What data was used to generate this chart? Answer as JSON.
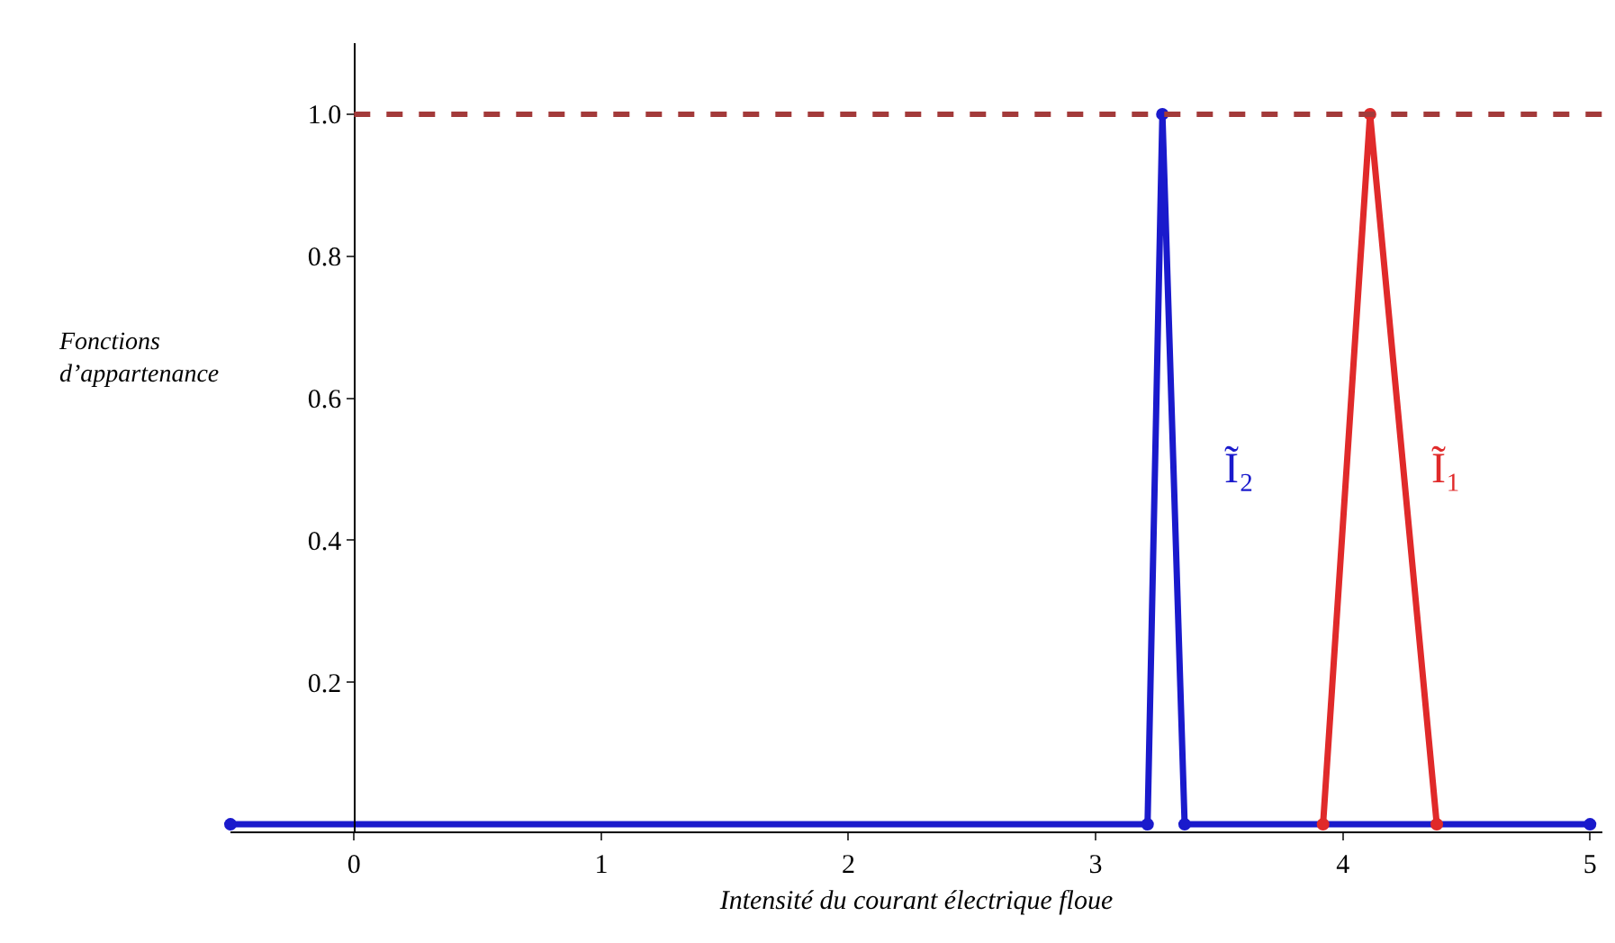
{
  "chart_data": {
    "type": "line",
    "xlabel": "Intensité du courant électrique floue",
    "ylabel": "Fonctions\nd’appartenance",
    "xlim": [
      -0.5,
      5.05
    ],
    "ylim": [
      -0.01,
      1.1
    ],
    "xticks": [
      0,
      1,
      2,
      3,
      4,
      5
    ],
    "yticks": [
      0.2,
      0.4,
      0.6,
      0.8,
      {
        "value": 1,
        "label": "1.0"
      }
    ],
    "grid": false,
    "legend": false,
    "marker": "circle",
    "line_style": "solid",
    "series": [
      {
        "name": "Ĩ₂",
        "color": "#1a1acc",
        "x": [
          -0.5,
          3.21,
          3.27,
          3.36,
          5
        ],
        "values": [
          0,
          0,
          1,
          0,
          0
        ]
      },
      {
        "name": "Ĩ₁",
        "color": "#e02a2a",
        "x": [
          3.92,
          4.11,
          4.38
        ],
        "values": [
          0,
          1,
          0
        ]
      }
    ],
    "ref_lines": [
      {
        "axis": "y",
        "value": 1,
        "color": "#a33a3a",
        "line_style": "dashed"
      }
    ]
  }
}
